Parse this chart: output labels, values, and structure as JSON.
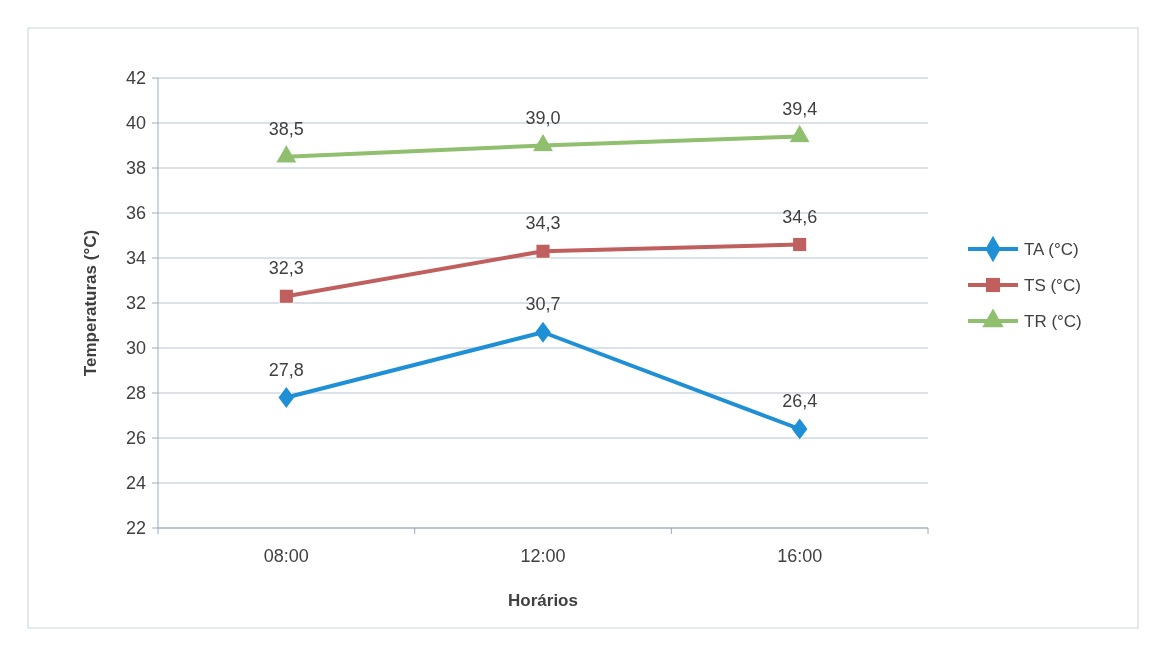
{
  "chart_data": {
    "type": "line",
    "xlabel": "Horários",
    "ylabel": "Temperaturas (°C)",
    "categories": [
      "08:00",
      "12:00",
      "16:00"
    ],
    "ylim": [
      22,
      42
    ],
    "yticks": [
      22,
      24,
      26,
      28,
      30,
      32,
      34,
      36,
      38,
      40,
      42
    ],
    "grid": "y",
    "legend": "right",
    "series": [
      {
        "name": "TA (°C)",
        "color": "#1f8fd6",
        "marker": "diamond",
        "values": [
          27.8,
          30.7,
          26.4
        ],
        "value_labels": [
          "27,8",
          "30,7",
          "26,4"
        ]
      },
      {
        "name": "TS (°C)",
        "color": "#c0605e",
        "marker": "square",
        "values": [
          32.3,
          34.3,
          34.6
        ],
        "value_labels": [
          "32,3",
          "34,3",
          "34,6"
        ]
      },
      {
        "name": "TR (°C)",
        "color": "#8fbf6f",
        "marker": "triangle",
        "values": [
          38.5,
          39.0,
          39.4
        ],
        "value_labels": [
          "38,5",
          "39,0",
          "39,4"
        ]
      }
    ]
  }
}
